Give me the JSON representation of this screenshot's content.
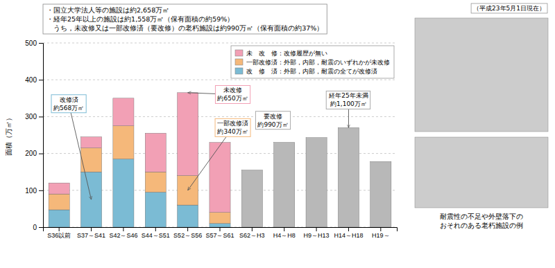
{
  "chart_data": {
    "type": "bar",
    "stacked": true,
    "grid": true,
    "legend": "upper right",
    "categories": [
      "S36以前",
      "S37～S41",
      "S42～S46",
      "S44～S51",
      "S52～S56",
      "S57～S61",
      "S62～H3",
      "H4～H8",
      "H9～H13",
      "H14～H18",
      "H19～"
    ],
    "series": [
      {
        "name": "改　修　済：外部，内部，耐震の全てが改修済",
        "color": "#7bbbd4",
        "values": [
          47,
          150,
          185,
          95,
          60,
          10,
          0,
          0,
          0,
          0,
          0
        ]
      },
      {
        "name": "一部改修済：外部，内部，耐震のいずれかが未改修",
        "color": "#f5b87a",
        "values": [
          43,
          65,
          90,
          55,
          80,
          30,
          0,
          0,
          0,
          0,
          0
        ]
      },
      {
        "name": "未　改　修：改修履歴が無い",
        "color": "#f2a0b5",
        "values": [
          30,
          30,
          75,
          105,
          225,
          190,
          0,
          0,
          0,
          0,
          0
        ]
      },
      {
        "color": "#b8b8b8",
        "values": [
          0,
          0,
          0,
          0,
          0,
          0,
          155,
          230,
          243,
          270,
          178
        ]
      }
    ],
    "ylabel": "面積（万㎡）",
    "ylim": [
      0,
      500
    ],
    "yticks": [
      0,
      100,
      200,
      300,
      400,
      500
    ],
    "subtitle": [
      "・国立大学法人等の施設は約2,658万㎡",
      "・経年25年以上の施設は約1,558万㎡（保有面積の約59%）",
      "　うち，未改修又は一部改修済（要改修）の老朽施設は約990万㎡（保有面積の約37%）"
    ],
    "annotations": [
      {
        "text": "改修済\n約568万㎡"
      },
      {
        "text": "未改修\n約650万㎡"
      },
      {
        "text": "一部改修済\n約340万㎡"
      },
      {
        "text": "要改修\n約990万㎡"
      },
      {
        "text": "経年25年未満\n約1,100万㎡"
      }
    ],
    "notes": [
      "（平成23年5月1日現在）",
      "耐震性の不足や外壁落下の\nおそれのある老朽施設の例"
    ]
  }
}
